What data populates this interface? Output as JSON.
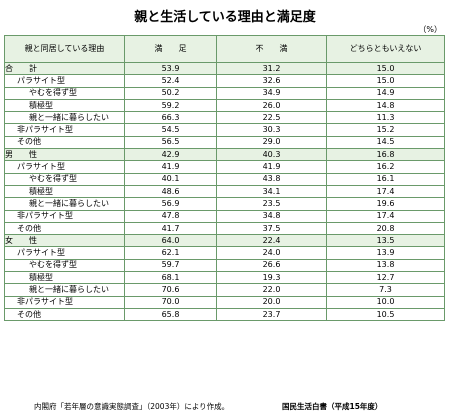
{
  "title": "親と生活している理由と満足度",
  "unit": "（%）",
  "headers": [
    "親と同居している理由",
    "満　　足",
    "不　　満",
    "どちらともいえない"
  ],
  "groups": [
    {
      "label": "合　　計",
      "values": [
        "53.9",
        "31.2",
        "15.0"
      ],
      "rows": [
        {
          "label": "パラサイト型",
          "values": [
            "52.4",
            "32.6",
            "15.0"
          ]
        },
        {
          "label": "やむを得ず型",
          "values": [
            "50.2",
            "34.9",
            "14.9"
          ]
        },
        {
          "label": "積極型",
          "values": [
            "59.2",
            "26.0",
            "14.8"
          ]
        },
        {
          "label": "親と一緒に暮らしたい",
          "values": [
            "66.3",
            "22.5",
            "11.3"
          ]
        },
        {
          "label": "非パラサイト型",
          "values": [
            "54.5",
            "30.3",
            "15.2"
          ]
        },
        {
          "label": "その他",
          "values": [
            "56.5",
            "29.0",
            "14.5"
          ]
        }
      ]
    },
    {
      "label": "男　　性",
      "values": [
        "42.9",
        "40.3",
        "16.8"
      ],
      "rows": [
        {
          "label": "パラサイト型",
          "values": [
            "41.9",
            "41.9",
            "16.2"
          ]
        },
        {
          "label": "やむを得ず型",
          "values": [
            "40.1",
            "43.8",
            "16.1"
          ]
        },
        {
          "label": "積極型",
          "values": [
            "48.6",
            "34.1",
            "17.4"
          ]
        },
        {
          "label": "親と一緒に暮らしたい",
          "values": [
            "56.9",
            "23.5",
            "19.6"
          ]
        },
        {
          "label": "非パラサイト型",
          "values": [
            "47.8",
            "34.8",
            "17.4"
          ]
        },
        {
          "label": "その他",
          "values": [
            "41.7",
            "37.5",
            "20.8"
          ]
        }
      ]
    },
    {
      "label": "女　　性",
      "values": [
        "64.0",
        "22.4",
        "13.5"
      ],
      "rows": [
        {
          "label": "パラサイト型",
          "values": [
            "62.1",
            "24.0",
            "13.9"
          ]
        },
        {
          "label": "やむを得ず型",
          "values": [
            "59.7",
            "26.6",
            "13.8"
          ]
        },
        {
          "label": "積極型",
          "values": [
            "68.1",
            "19.3",
            "12.7"
          ]
        },
        {
          "label": "親と一緒に暮らしたい",
          "values": [
            "70.6",
            "22.0",
            "7.3"
          ]
        },
        {
          "label": "非パラサイト型",
          "values": [
            "70.0",
            "20.0",
            "10.0"
          ]
        },
        {
          "label": "その他",
          "values": [
            "65.8",
            "23.7",
            "10.5"
          ]
        }
      ]
    }
  ],
  "footer": {
    "source": "内閣府「若年層の意識実態調査」（2003年）により作成。",
    "publication": "国民生活白書（平成15年度）"
  }
}
